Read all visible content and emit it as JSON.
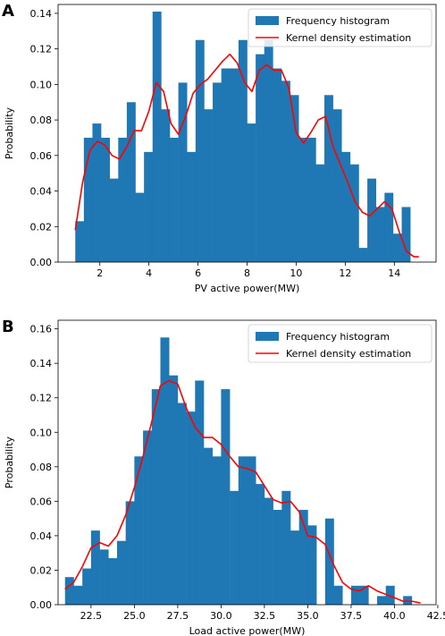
{
  "chart_data": [
    {
      "panel": "A",
      "type": "bar",
      "xlabel": "PV active power(MW)",
      "ylabel": "Probability",
      "xlim": [
        0.3,
        15.7
      ],
      "ylim": [
        0,
        0.145
      ],
      "xticks": [
        2,
        4,
        6,
        8,
        10,
        12,
        14
      ],
      "xtick_labels": [
        "2",
        "4",
        "6",
        "8",
        "10",
        "12",
        "14"
      ],
      "yticks": [
        0,
        0.02,
        0.04,
        0.06,
        0.08,
        0.1,
        0.12,
        0.14
      ],
      "ytick_labels": [
        "0.00",
        "0.02",
        "0.04",
        "0.06",
        "0.08",
        "0.10",
        "0.12",
        "0.14"
      ],
      "legend": {
        "position": "top-right",
        "entries": [
          "Frequency histogram",
          "Kernel density estimation"
        ]
      },
      "bar_color": "#1f77b4",
      "kde_color": "#ff0000",
      "histogram": {
        "edges": [
          1.0,
          1.35,
          1.7,
          2.05,
          2.4,
          2.75,
          3.1,
          3.45,
          3.8,
          4.15,
          4.5,
          4.85,
          5.2,
          5.55,
          5.9,
          6.25,
          6.6,
          6.95,
          7.3,
          7.65,
          8.0,
          8.35,
          8.7,
          9.05,
          9.4,
          9.75,
          10.1,
          10.45,
          10.8,
          11.15,
          11.5,
          11.85,
          12.2,
          12.55,
          12.9,
          13.25,
          13.6,
          13.95,
          14.3,
          14.65,
          15.0
        ],
        "values": [
          0.023,
          0.07,
          0.078,
          0.07,
          0.047,
          0.07,
          0.09,
          0.039,
          0.062,
          0.141,
          0.086,
          0.07,
          0.101,
          0.062,
          0.125,
          0.086,
          0.101,
          0.109,
          0.109,
          0.125,
          0.078,
          0.117,
          0.125,
          0.109,
          0.102,
          0.094,
          0.07,
          0.07,
          0.055,
          0.094,
          0.086,
          0.062,
          0.055,
          0.008,
          0.047,
          0.031,
          0.039,
          0.016,
          0.031,
          0.0,
          0.008
        ]
      },
      "kde": {
        "x": [
          1.0,
          1.3,
          1.6,
          1.9,
          2.2,
          2.5,
          2.8,
          3.1,
          3.4,
          3.7,
          4.0,
          4.3,
          4.6,
          4.9,
          5.2,
          5.5,
          5.8,
          6.1,
          6.4,
          6.7,
          7.0,
          7.3,
          7.6,
          7.9,
          8.2,
          8.5,
          8.8,
          9.1,
          9.4,
          9.7,
          10.0,
          10.3,
          10.6,
          10.9,
          11.2,
          11.5,
          11.8,
          12.1,
          12.4,
          12.7,
          13.0,
          13.3,
          13.6,
          13.9,
          14.2,
          14.5,
          14.8,
          15.0
        ],
        "y": [
          0.018,
          0.045,
          0.063,
          0.068,
          0.066,
          0.06,
          0.058,
          0.065,
          0.074,
          0.074,
          0.085,
          0.101,
          0.096,
          0.078,
          0.072,
          0.082,
          0.095,
          0.1,
          0.103,
          0.108,
          0.113,
          0.117,
          0.112,
          0.101,
          0.096,
          0.108,
          0.111,
          0.108,
          0.108,
          0.098,
          0.073,
          0.067,
          0.073,
          0.08,
          0.082,
          0.065,
          0.055,
          0.045,
          0.034,
          0.028,
          0.026,
          0.03,
          0.034,
          0.03,
          0.017,
          0.006,
          0.003,
          0.003
        ]
      }
    },
    {
      "panel": "B",
      "type": "bar",
      "xlabel": "Load active power(MW)",
      "ylabel": "Probability",
      "xlim": [
        20.6,
        42.4
      ],
      "ylim": [
        0,
        0.165
      ],
      "xticks": [
        22.5,
        25.0,
        27.5,
        30.0,
        32.5,
        35.0,
        37.5,
        40.0,
        42.5
      ],
      "xtick_labels": [
        "22.5",
        "25.0",
        "27.5",
        "30.0",
        "32.5",
        "35.0",
        "37.5",
        "40.0",
        "42.5"
      ],
      "yticks": [
        0,
        0.02,
        0.04,
        0.06,
        0.08,
        0.1,
        0.12,
        0.14,
        0.16
      ],
      "ytick_labels": [
        "0.00",
        "0.02",
        "0.04",
        "0.06",
        "0.08",
        "0.10",
        "0.12",
        "0.14",
        "0.16"
      ],
      "legend": {
        "position": "top-right",
        "entries": [
          "Frequency histogram",
          "Kernel density estimation"
        ]
      },
      "bar_color": "#1f77b4",
      "kde_color": "#ff0000",
      "histogram": {
        "edges": [
          21.0,
          21.5,
          22.0,
          22.5,
          23.0,
          23.5,
          24.0,
          24.5,
          25.0,
          25.5,
          26.0,
          26.5,
          27.0,
          27.5,
          28.0,
          28.5,
          29.0,
          29.5,
          30.0,
          30.5,
          31.0,
          31.5,
          32.0,
          32.5,
          33.0,
          33.5,
          34.0,
          34.5,
          35.0,
          35.5,
          36.0,
          36.5,
          37.0,
          37.5,
          38.0,
          38.5,
          39.0,
          39.5,
          40.0,
          40.5,
          41.0,
          41.5
        ],
        "values": [
          0.016,
          0.011,
          0.021,
          0.043,
          0.032,
          0.027,
          0.037,
          0.06,
          0.086,
          0.101,
          0.125,
          0.155,
          0.133,
          0.117,
          0.112,
          0.13,
          0.091,
          0.086,
          0.125,
          0.066,
          0.086,
          0.086,
          0.07,
          0.062,
          0.055,
          0.066,
          0.043,
          0.055,
          0.046,
          0.0,
          0.05,
          0.011,
          0.0,
          0.011,
          0.011,
          0.0,
          0.005,
          0.011,
          0.0,
          0.005,
          0.0,
          0.005
        ]
      },
      "kde": {
        "x": [
          21.0,
          21.5,
          22.0,
          22.5,
          23.0,
          23.5,
          24.0,
          24.5,
          25.0,
          25.5,
          26.0,
          26.5,
          27.0,
          27.5,
          28.0,
          28.5,
          29.0,
          29.5,
          30.0,
          30.5,
          31.0,
          31.5,
          32.0,
          32.5,
          33.0,
          33.5,
          34.0,
          34.5,
          35.0,
          35.5,
          36.0,
          36.5,
          37.0,
          37.5,
          38.0,
          38.5,
          39.0,
          39.5,
          40.0,
          40.5,
          41.0,
          41.5
        ],
        "y": [
          0.009,
          0.013,
          0.022,
          0.033,
          0.036,
          0.034,
          0.04,
          0.052,
          0.068,
          0.086,
          0.106,
          0.127,
          0.13,
          0.128,
          0.114,
          0.103,
          0.097,
          0.097,
          0.093,
          0.086,
          0.08,
          0.079,
          0.077,
          0.069,
          0.061,
          0.059,
          0.06,
          0.054,
          0.04,
          0.039,
          0.035,
          0.023,
          0.013,
          0.009,
          0.008,
          0.011,
          0.008,
          0.006,
          0.004,
          0.002,
          0.002,
          0.001
        ]
      }
    }
  ]
}
